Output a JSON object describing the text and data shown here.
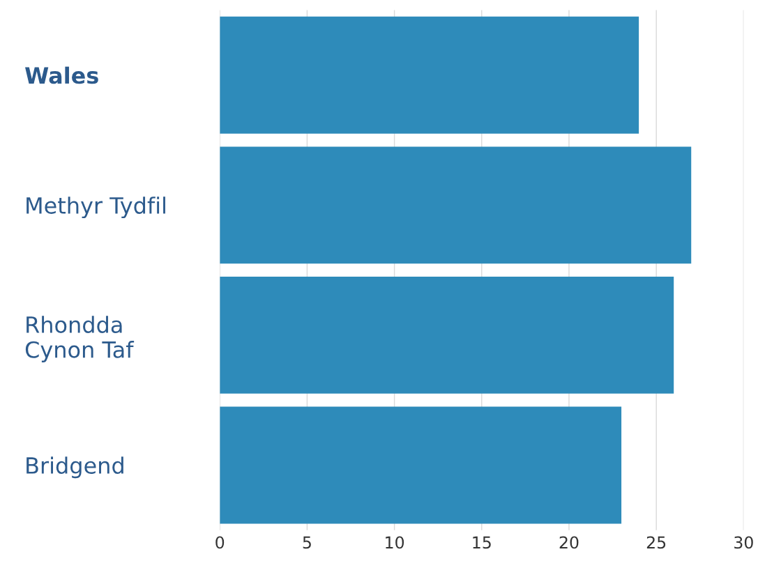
{
  "chart_data": {
    "type": "bar",
    "orientation": "horizontal",
    "categories": [
      "Wales",
      "Methyr Tydfil",
      "Rhondda\nCynon Taf",
      "Bridgend"
    ],
    "values": [
      24,
      27,
      26,
      23
    ],
    "color": "#2e8bba",
    "xlim": [
      0,
      30
    ],
    "xticks": [
      0,
      5,
      10,
      15,
      20,
      25,
      30
    ],
    "grid": "x",
    "legend": false
  }
}
